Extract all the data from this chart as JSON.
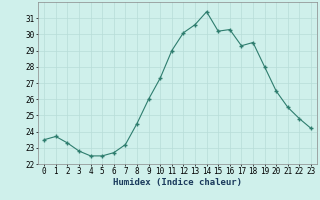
{
  "x": [
    0,
    1,
    2,
    3,
    4,
    5,
    6,
    7,
    8,
    9,
    10,
    11,
    12,
    13,
    14,
    15,
    16,
    17,
    18,
    19,
    20,
    21,
    22,
    23
  ],
  "y": [
    23.5,
    23.7,
    23.3,
    22.8,
    22.5,
    22.5,
    22.7,
    23.2,
    24.5,
    26.0,
    27.3,
    29.0,
    30.1,
    30.6,
    31.4,
    30.2,
    30.3,
    29.3,
    29.5,
    28.0,
    26.5,
    25.5,
    24.8,
    24.2
  ],
  "xlabel": "Humidex (Indice chaleur)",
  "xlim": [
    -0.5,
    23.5
  ],
  "ylim": [
    22,
    32
  ],
  "yticks": [
    22,
    23,
    24,
    25,
    26,
    27,
    28,
    29,
    30,
    31
  ],
  "xtick_labels": [
    "0",
    "1",
    "2",
    "3",
    "4",
    "5",
    "6",
    "7",
    "8",
    "9",
    "10",
    "11",
    "12",
    "13",
    "14",
    "15",
    "16",
    "17",
    "18",
    "19",
    "20",
    "21",
    "22",
    "23"
  ],
  "line_color": "#2e7d6e",
  "marker_color": "#2e7d6e",
  "bg_color": "#cff0eb",
  "grid_color": "#b8ddd8",
  "axis_fontsize": 6.5,
  "tick_fontsize": 5.5,
  "label_color": "#1a3a5c"
}
